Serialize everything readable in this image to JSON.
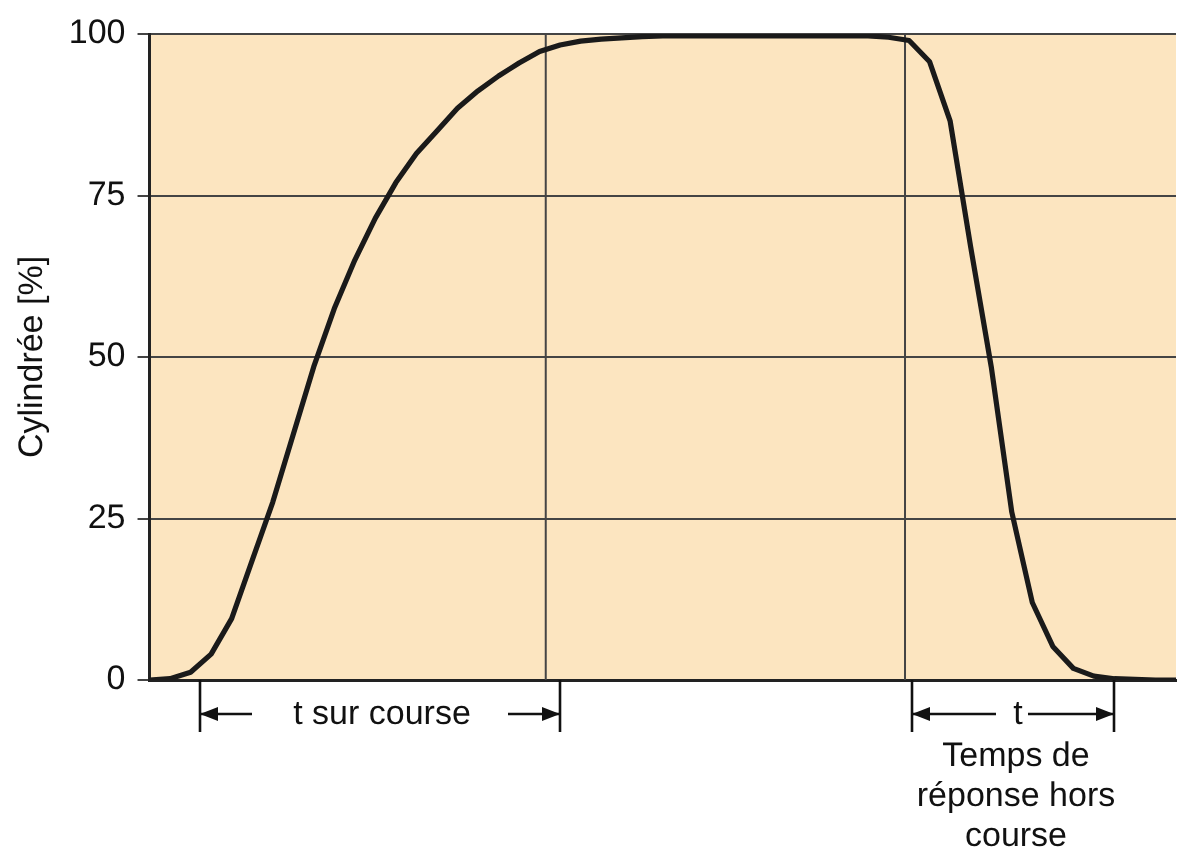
{
  "chart_data": {
    "type": "line",
    "ylabel": "Cylindrée [%]",
    "categories": [
      null,
      null,
      null,
      null,
      null,
      null,
      null,
      null,
      null,
      null,
      null,
      null,
      null,
      null,
      null,
      null,
      null,
      null,
      null,
      null,
      null,
      null,
      null,
      null,
      null,
      null,
      null,
      null,
      null,
      null,
      null,
      null,
      null,
      null,
      null,
      null,
      null,
      null,
      null,
      null,
      null,
      null,
      null,
      null,
      null,
      null,
      null,
      null,
      null,
      null,
      null
    ],
    "ylim": [
      0,
      100
    ],
    "yticks": [
      0,
      25,
      50,
      75,
      100
    ],
    "grid": "y",
    "tick_labels": "y",
    "legend": false,
    "marker": "none",
    "line_style": "solid",
    "series": [
      {
        "color": "#1a1a1a",
        "values": [
          0,
          0.2,
          1.2,
          4,
          9.5,
          18.5,
          27.5,
          38,
          48.5,
          57.5,
          65,
          71.5,
          77,
          81.5,
          85,
          88.5,
          91.2,
          93.5,
          95.5,
          97.3,
          98.3,
          98.9,
          99.2,
          99.4,
          99.6,
          99.7,
          99.7,
          99.7,
          99.7,
          99.7,
          99.7,
          99.7,
          99.7,
          99.7,
          99.7,
          99.7,
          99.5,
          99,
          95.7,
          86.5,
          67,
          48.5,
          26,
          12,
          5.2,
          1.8,
          0.6,
          0.2,
          0.1,
          0,
          0
        ]
      }
    ],
    "annotations": [
      "t sur course",
      "t",
      "Temps de réponse hors course"
    ]
  }
}
